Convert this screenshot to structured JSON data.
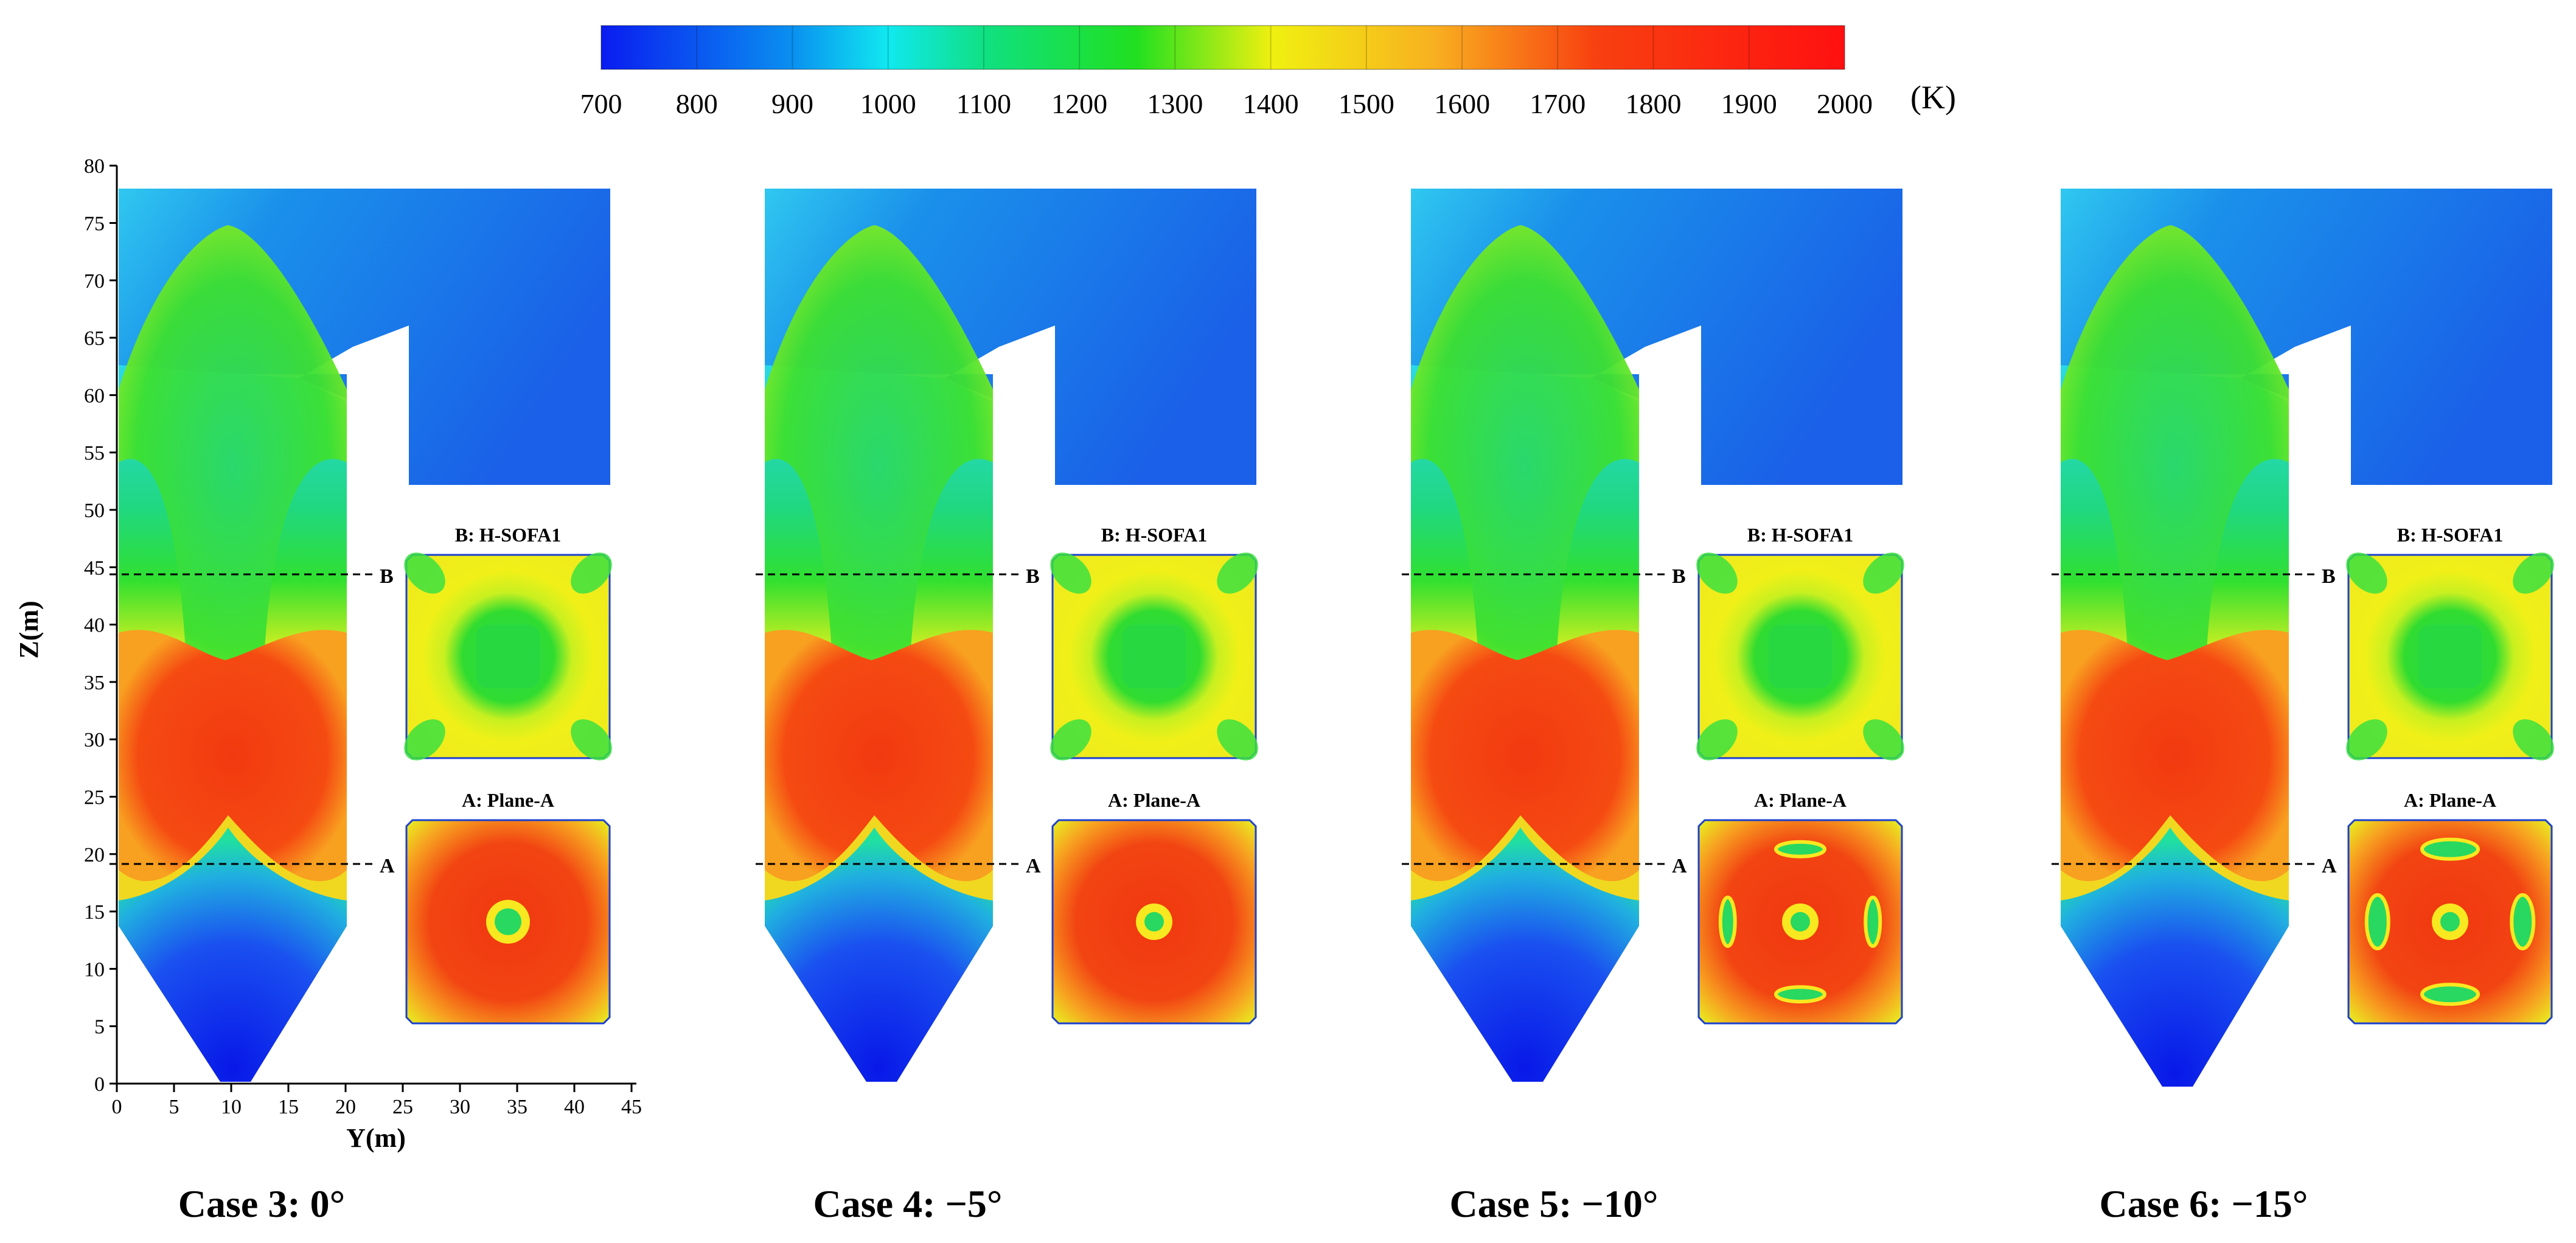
{
  "colorbar": {
    "ticks": [
      "700",
      "800",
      "900",
      "1000",
      "1100",
      "1200",
      "1300",
      "1400",
      "1500",
      "1600",
      "1700",
      "1800",
      "1900",
      "2000"
    ],
    "unit": "(K)"
  },
  "axes": {
    "y_ticks": [
      "0",
      "5",
      "10",
      "15",
      "20",
      "25",
      "30",
      "35",
      "40",
      "45",
      "50",
      "55",
      "60",
      "65",
      "70",
      "75",
      "80"
    ],
    "x_ticks": [
      "0",
      "5",
      "10",
      "15",
      "20",
      "25",
      "30",
      "35",
      "40",
      "45"
    ],
    "ylabel": "Z(m)",
    "xlabel": "Y(m)"
  },
  "section_labels": {
    "top": "B: H-SOFA1",
    "bottom": "A: Plane-A",
    "line_b": "B",
    "line_a": "A"
  },
  "panels": [
    {
      "caption": "Case 3: 0°"
    },
    {
      "caption": "Case 4: −5°"
    },
    {
      "caption": "Case 5: −10°"
    },
    {
      "caption": "Case 6: −15°"
    }
  ]
}
